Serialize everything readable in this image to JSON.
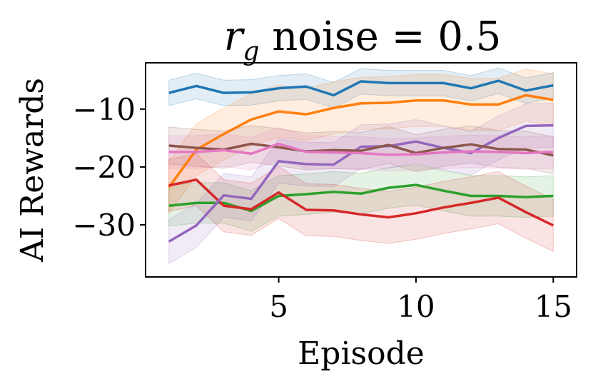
{
  "chart_data": {
    "type": "line",
    "title": "r_g noise = 0.5",
    "title_parts": {
      "symbol": "r",
      "subscript": "g",
      "rest": " noise = 0.5"
    },
    "xlabel": "Episode",
    "ylabel": "AI Rewards",
    "xlim": [
      0.15,
      15.85
    ],
    "ylim": [
      -39,
      -2
    ],
    "xticks": [
      5,
      10,
      15
    ],
    "xtick_labels": [
      "5",
      "10",
      "15"
    ],
    "yticks": [
      -10,
      -20,
      -30
    ],
    "ytick_labels": [
      "−10",
      "−20",
      "−30"
    ],
    "grid": false,
    "legend": "none",
    "x": [
      1,
      2,
      3,
      4,
      5,
      6,
      7,
      8,
      9,
      10,
      11,
      12,
      13,
      14,
      15
    ],
    "series": [
      {
        "name": "blue",
        "color": "#1f77b4",
        "values": [
          -7.2,
          -6.0,
          -7.2,
          -7.1,
          -6.4,
          -6.1,
          -7.6,
          -5.2,
          -5.5,
          -5.5,
          -5.5,
          -6.4,
          -5.1,
          -6.8,
          -5.9
        ],
        "band": 2.2
      },
      {
        "name": "orange",
        "color": "#ff7f0e",
        "values": [
          -23.5,
          -17.0,
          -14.3,
          -11.8,
          -10.4,
          -10.9,
          -9.8,
          -9.0,
          -8.9,
          -8.5,
          -8.5,
          -9.2,
          -9.2,
          -7.6,
          -8.4
        ],
        "band": 4.5
      },
      {
        "name": "green",
        "color": "#2ca02c",
        "values": [
          -26.7,
          -26.2,
          -26.2,
          -27.6,
          -25.0,
          -24.7,
          -24.3,
          -24.6,
          -23.6,
          -23.1,
          -24.1,
          -25.0,
          -25.0,
          -25.2,
          -25.0
        ],
        "band": 3.5
      },
      {
        "name": "red",
        "color": "#d62728",
        "values": [
          -23.2,
          -22.2,
          -26.7,
          -27.3,
          -24.4,
          -27.4,
          -27.5,
          -28.2,
          -28.7,
          -28.0,
          -27.0,
          -26.2,
          -25.3,
          -27.8,
          -30.1
        ],
        "band": 4.5
      },
      {
        "name": "purple",
        "color": "#9467bd",
        "values": [
          -32.9,
          -30.1,
          -24.9,
          -25.5,
          -19.0,
          -19.5,
          -19.6,
          -16.5,
          -16.4,
          -15.6,
          -16.7,
          -17.6,
          -15.0,
          -12.9,
          -12.8
        ],
        "band": 3.8
      },
      {
        "name": "brown",
        "color": "#8c564b",
        "values": [
          -16.3,
          -16.7,
          -17.0,
          -16.0,
          -16.6,
          -17.3,
          -17.1,
          -17.2,
          -16.2,
          -17.6,
          -16.7,
          -16.1,
          -16.9,
          -17.0,
          -18.0
        ],
        "band": 3.2
      },
      {
        "name": "pink",
        "color": "#e377c2",
        "values": [
          -17.4,
          -17.4,
          -17.1,
          -17.7,
          -16.0,
          -17.4,
          -17.5,
          -17.6,
          -17.9,
          -17.8,
          -17.5,
          -17.3,
          -17.4,
          -17.6,
          -17.4
        ],
        "band": 2.8
      }
    ]
  }
}
